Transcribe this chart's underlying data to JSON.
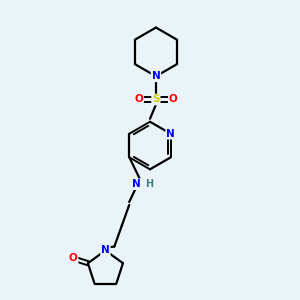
{
  "bg_color": "#eaf4f8",
  "bond_color": "#000000",
  "atom_colors": {
    "N": "#0000ff",
    "O": "#ff0000",
    "S": "#cccc00",
    "H": "#408080",
    "C": "#000000"
  }
}
